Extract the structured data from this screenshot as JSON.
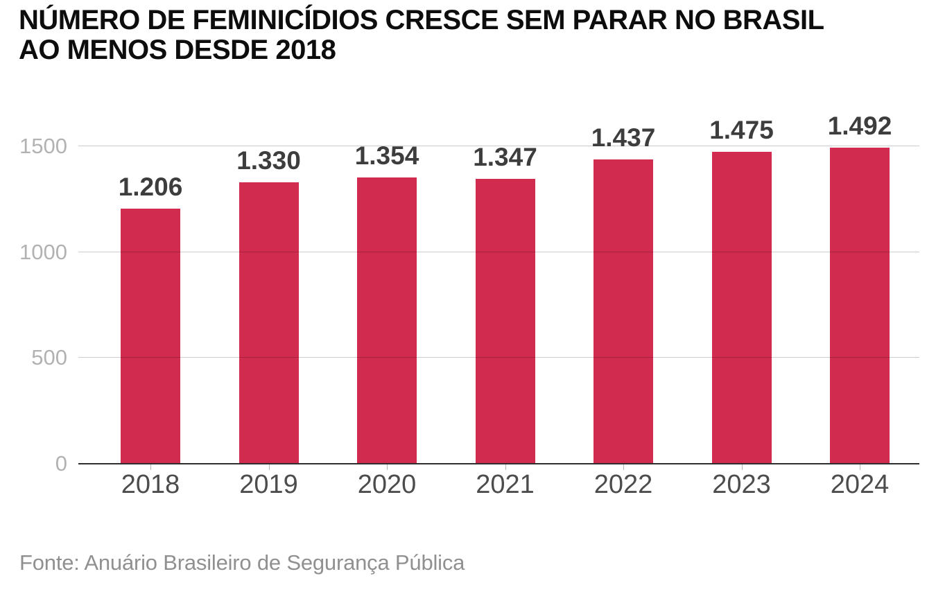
{
  "title": {
    "line1": "NÚMERO DE FEMINICÍDIOS CRESCE SEM PARAR NO BRASIL",
    "line2": "AO MENOS DESDE 2018"
  },
  "source": "Fonte: Anuário Brasileiro de Segurança Pública",
  "chart_data": {
    "type": "bar",
    "title": "NÚMERO DE FEMINICÍDIOS CRESCE SEM PARAR NO BRASIL AO MENOS DESDE 2018",
    "categories": [
      "2018",
      "2019",
      "2020",
      "2021",
      "2022",
      "2023",
      "2024"
    ],
    "values": [
      1206,
      1330,
      1354,
      1347,
      1437,
      1475,
      1492
    ],
    "value_labels": [
      "1.206",
      "1.330",
      "1.354",
      "1.347",
      "1.437",
      "1.475",
      "1.492"
    ],
    "xlabel": "",
    "ylabel": "",
    "ylim": [
      0,
      1500
    ],
    "yticks": [
      0,
      500,
      1000,
      1500
    ],
    "grid": "horizontal",
    "legend": "none",
    "bar_color": "#d22b50",
    "source_label": "Fonte: Anuário Brasileiro de Segurança Pública"
  }
}
